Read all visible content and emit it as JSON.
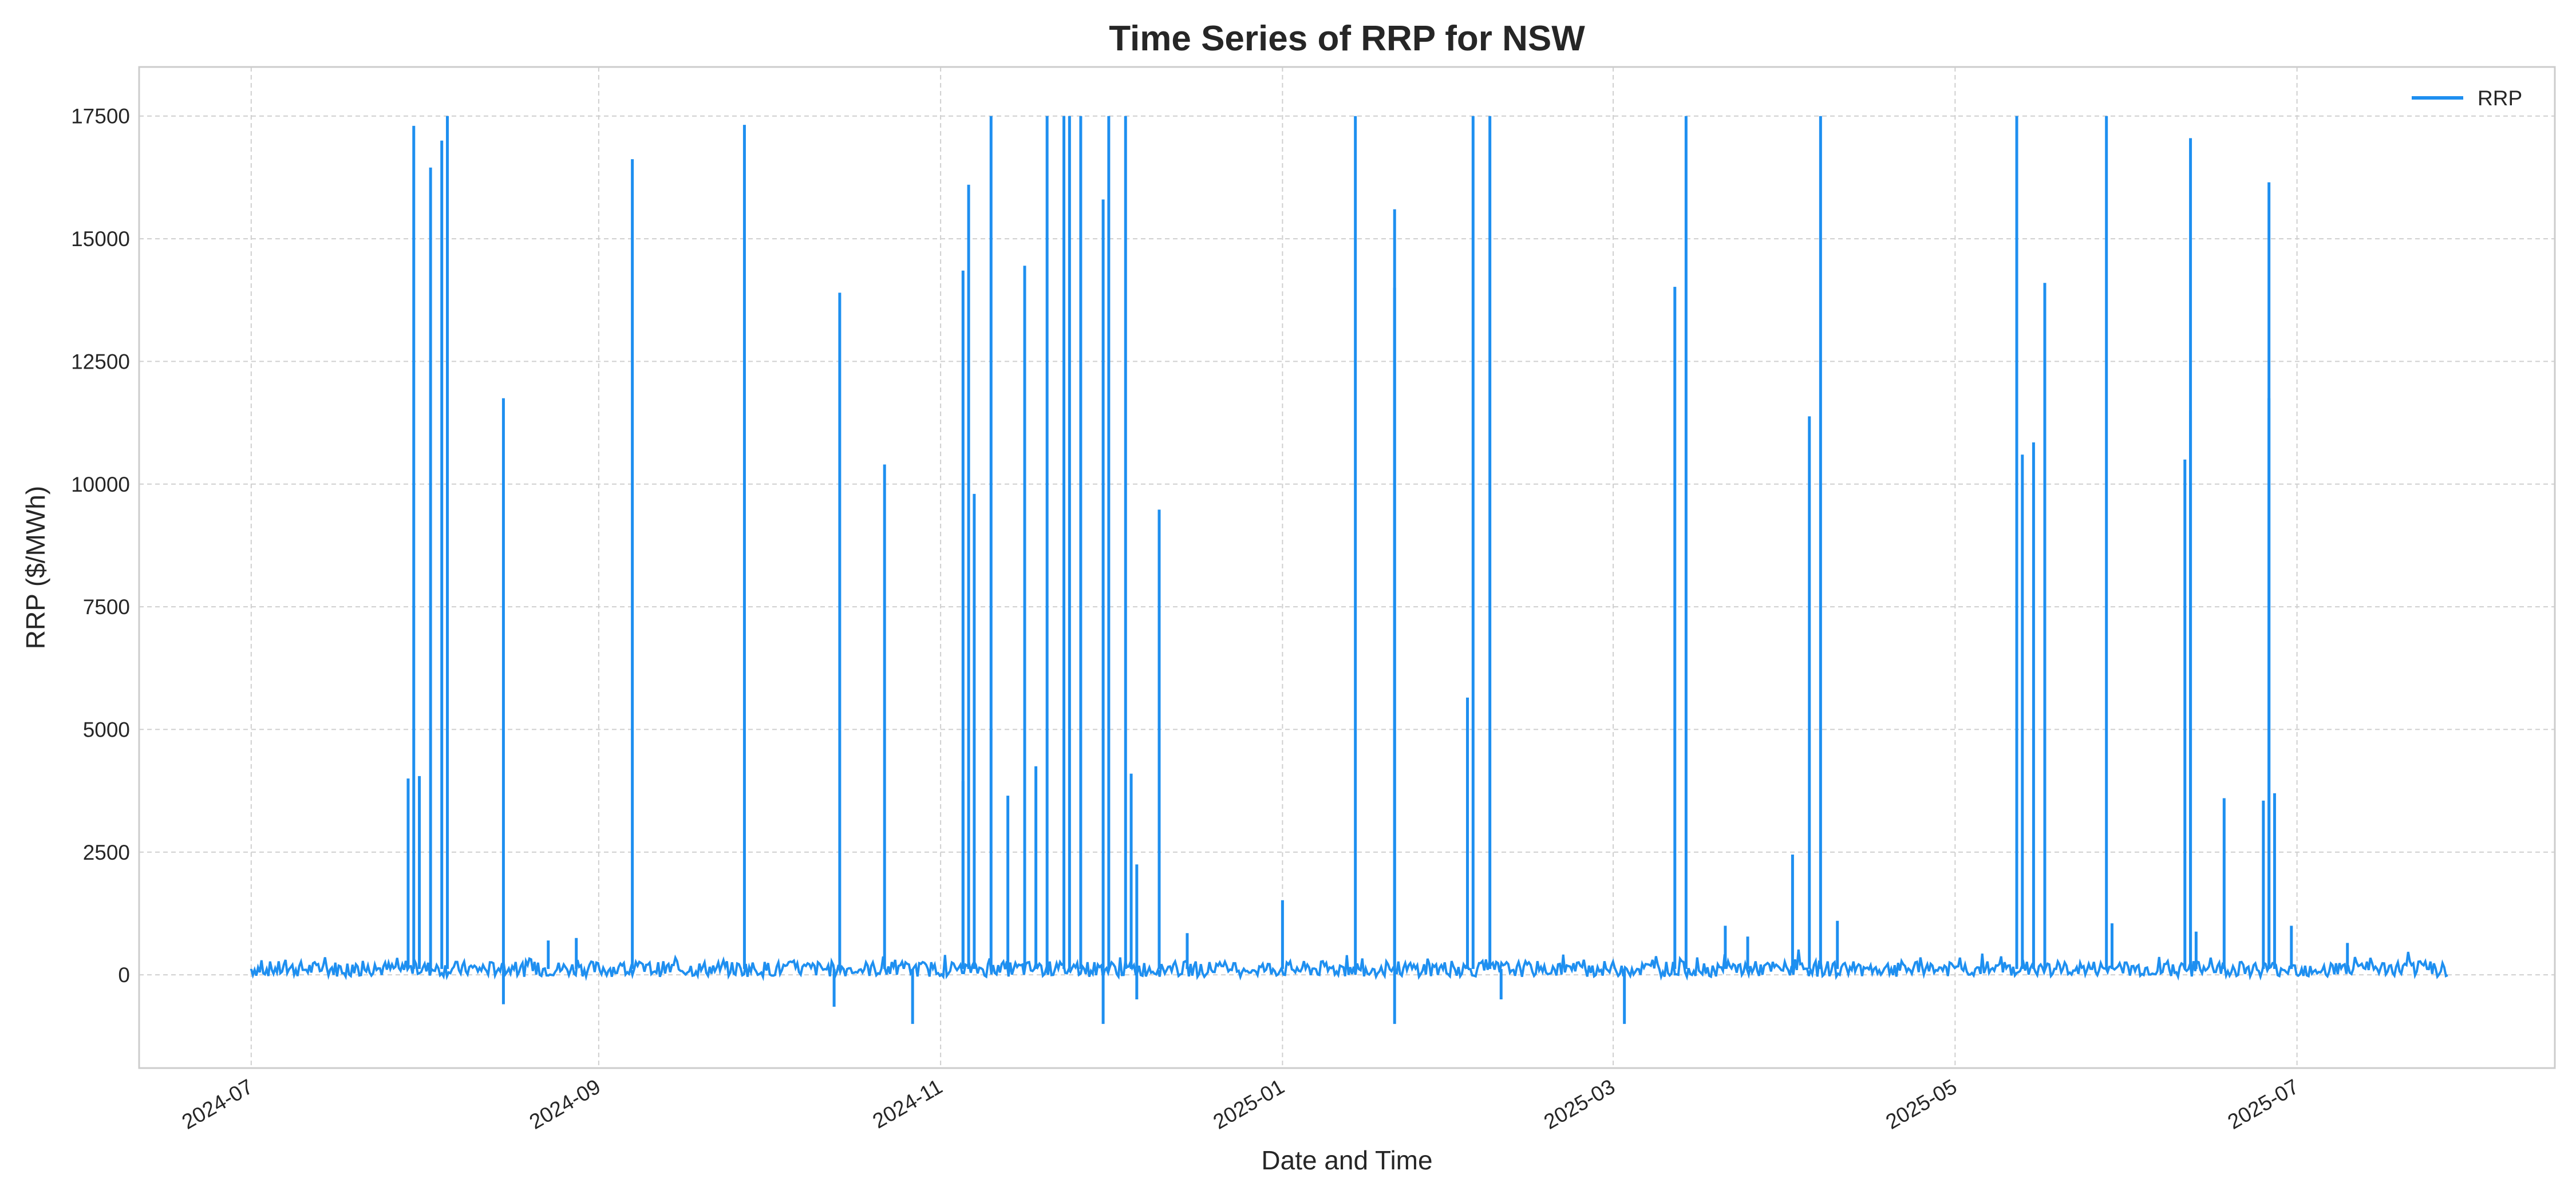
{
  "chart_data": {
    "type": "line",
    "title": "Time Series of RRP for NSW",
    "xlabel": "Date and Time",
    "ylabel": "RRP ($/MWh)",
    "x_range": [
      "2024-06-11",
      "2025-08-16"
    ],
    "ylim": [
      -1900,
      18500
    ],
    "grid": true,
    "legend_position": "top-right",
    "x_ticks": [
      "2024-07",
      "2024-09",
      "2024-11",
      "2025-01",
      "2025-03",
      "2025-05",
      "2025-07"
    ],
    "y_ticks": [
      "0",
      "2500",
      "5000",
      "7500",
      "10000",
      "12500",
      "15000",
      "17500"
    ],
    "series": [
      {
        "name": "RRP",
        "color": "#1e8ff0",
        "data_start": "2024-07-01",
        "data_end": "2025-07-28",
        "baseline": 120,
        "spikes": [
          [
            "2024-07-29",
            4000
          ],
          [
            "2024-07-30",
            17300
          ],
          [
            "2024-07-31",
            4050
          ],
          [
            "2024-08-02",
            16450
          ],
          [
            "2024-08-04",
            17000
          ],
          [
            "2024-08-05",
            17500
          ],
          [
            "2024-08-15",
            11750
          ],
          [
            "2024-08-15",
            -600
          ],
          [
            "2024-08-23",
            700
          ],
          [
            "2024-08-28",
            750
          ],
          [
            "2024-09-07",
            16620
          ],
          [
            "2024-09-27",
            17320
          ],
          [
            "2024-10-13",
            -650
          ],
          [
            "2024-10-14",
            13900
          ],
          [
            "2024-10-22",
            10400
          ],
          [
            "2024-10-27",
            -1000
          ],
          [
            "2024-11-05",
            3950
          ],
          [
            "2024-11-05",
            14350
          ],
          [
            "2024-11-06",
            16100
          ],
          [
            "2024-11-07",
            9800
          ],
          [
            "2024-11-10",
            17500
          ],
          [
            "2024-11-13",
            3650
          ],
          [
            "2024-11-16",
            14450
          ],
          [
            "2024-11-18",
            4250
          ],
          [
            "2024-11-20",
            17500
          ],
          [
            "2024-11-23",
            17500
          ],
          [
            "2024-11-24",
            17500
          ],
          [
            "2024-11-26",
            17500
          ],
          [
            "2024-11-30",
            -1000
          ],
          [
            "2024-11-30",
            15800
          ],
          [
            "2024-12-01",
            17500
          ],
          [
            "2024-12-04",
            17500
          ],
          [
            "2024-12-05",
            4100
          ],
          [
            "2024-12-06",
            -500
          ],
          [
            "2024-12-06",
            2250
          ],
          [
            "2024-12-10",
            9480
          ],
          [
            "2024-12-15",
            850
          ],
          [
            "2025-01-01",
            1520
          ],
          [
            "2025-01-14",
            17500
          ],
          [
            "2025-01-21",
            -1000
          ],
          [
            "2025-01-21",
            15600
          ],
          [
            "2025-01-21",
            14000
          ],
          [
            "2025-02-03",
            5650
          ],
          [
            "2025-02-04",
            17500
          ],
          [
            "2025-02-07",
            17500
          ],
          [
            "2025-02-09",
            -500
          ],
          [
            "2025-03-03",
            -1000
          ],
          [
            "2025-03-12",
            14020
          ],
          [
            "2025-03-14",
            17500
          ],
          [
            "2025-03-21",
            1000
          ],
          [
            "2025-03-25",
            780
          ],
          [
            "2025-04-02",
            2450
          ],
          [
            "2025-04-05",
            11380
          ],
          [
            "2025-04-07",
            17500
          ],
          [
            "2025-04-10",
            1100
          ],
          [
            "2025-05-12",
            17500
          ],
          [
            "2025-05-13",
            10600
          ],
          [
            "2025-05-15",
            10850
          ],
          [
            "2025-05-17",
            14100
          ],
          [
            "2025-05-28",
            17500
          ],
          [
            "2025-05-29",
            1050
          ],
          [
            "2025-06-11",
            10500
          ],
          [
            "2025-06-12",
            17050
          ],
          [
            "2025-06-12",
            11500
          ],
          [
            "2025-06-13",
            880
          ],
          [
            "2025-06-18",
            3600
          ],
          [
            "2025-06-25",
            3550
          ],
          [
            "2025-06-26",
            16150
          ],
          [
            "2025-06-26",
            11750
          ],
          [
            "2025-06-27",
            3700
          ],
          [
            "2025-06-30",
            1000
          ],
          [
            "2025-07-10",
            650
          ]
        ]
      }
    ]
  }
}
